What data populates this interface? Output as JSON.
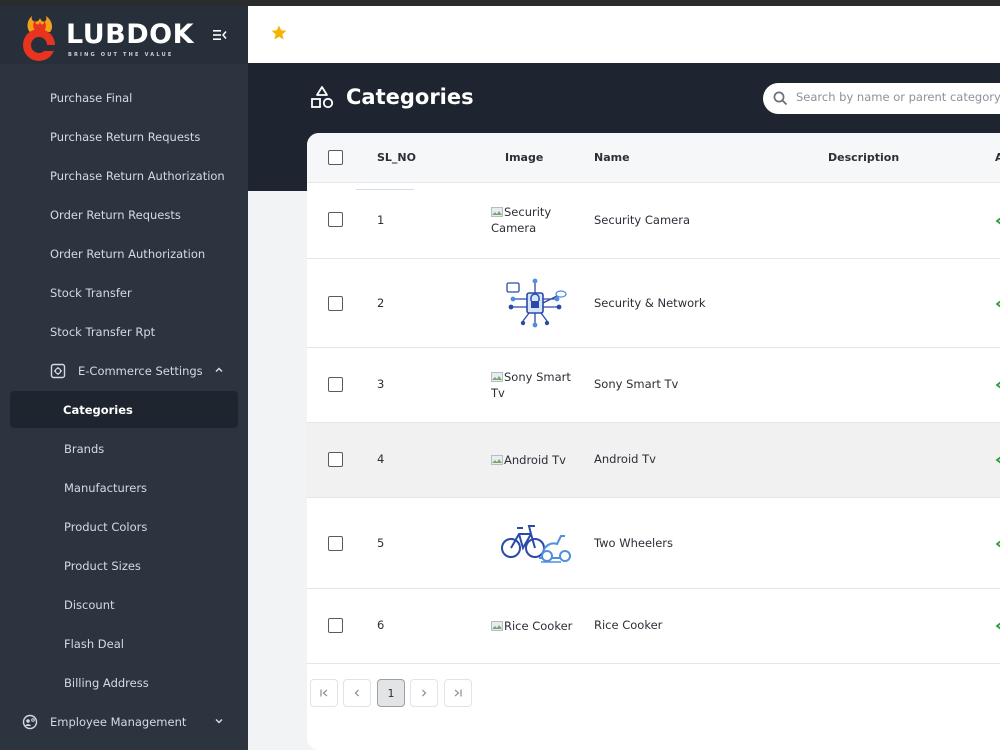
{
  "brand": {
    "name": "LUBDOK",
    "tagline": "BRING OUT THE VALUE",
    "accent": "#e8331f"
  },
  "sidebar": {
    "items": [
      {
        "label": "Purchase Final",
        "level": 1
      },
      {
        "label": "Purchase Return Requests",
        "level": 1
      },
      {
        "label": "Purchase Return Authorization",
        "level": 1
      },
      {
        "label": "Order Return Requests",
        "level": 1
      },
      {
        "label": "Order Return Authorization",
        "level": 1
      },
      {
        "label": "Stock Transfer",
        "level": 1
      },
      {
        "label": "Stock Transfer Rpt",
        "level": 1
      }
    ],
    "group": {
      "label": "E-Commerce Settings",
      "icon": "settings-box-icon",
      "expanded": true
    },
    "subitems": [
      {
        "label": "Categories",
        "active": true
      },
      {
        "label": "Brands"
      },
      {
        "label": "Manufacturers"
      },
      {
        "label": "Product Colors"
      },
      {
        "label": "Product Sizes"
      },
      {
        "label": "Discount"
      },
      {
        "label": "Flash Deal"
      },
      {
        "label": "Billing Address"
      }
    ],
    "group2": {
      "label": "Employee Management",
      "icon": "user-gear-icon",
      "expanded": false
    }
  },
  "topbar": {
    "favorite_icon": "star-icon",
    "favorite_color": "#f5b400"
  },
  "page": {
    "title": "Categories",
    "title_icon": "shapes-icon",
    "search": {
      "placeholder": "Search by name or parent category"
    }
  },
  "table": {
    "columns": [
      "SL_NO",
      "Image",
      "Name",
      "Description",
      "A"
    ],
    "rows": [
      {
        "sl": "1",
        "image_alt": "Security Camera",
        "image_broken": true,
        "name": "Security Camera",
        "description": ""
      },
      {
        "sl": "2",
        "image_alt": "",
        "image_broken": false,
        "image_icon": "network-security-icon",
        "name": "Security & Network",
        "description": ""
      },
      {
        "sl": "3",
        "image_alt": "Sony Smart Tv",
        "image_broken": true,
        "name": "Sony Smart Tv",
        "description": ""
      },
      {
        "sl": "4",
        "image_alt": "Android Tv",
        "image_broken": true,
        "name": "Android Tv",
        "description": ""
      },
      {
        "sl": "5",
        "image_alt": "",
        "image_broken": false,
        "image_icon": "bicycle-scooter-icon",
        "name": "Two Wheelers",
        "description": ""
      },
      {
        "sl": "6",
        "image_alt": "Rice Cooker",
        "image_broken": true,
        "name": "Rice Cooker",
        "description": ""
      }
    ]
  },
  "pagination": {
    "current_page": "1"
  }
}
